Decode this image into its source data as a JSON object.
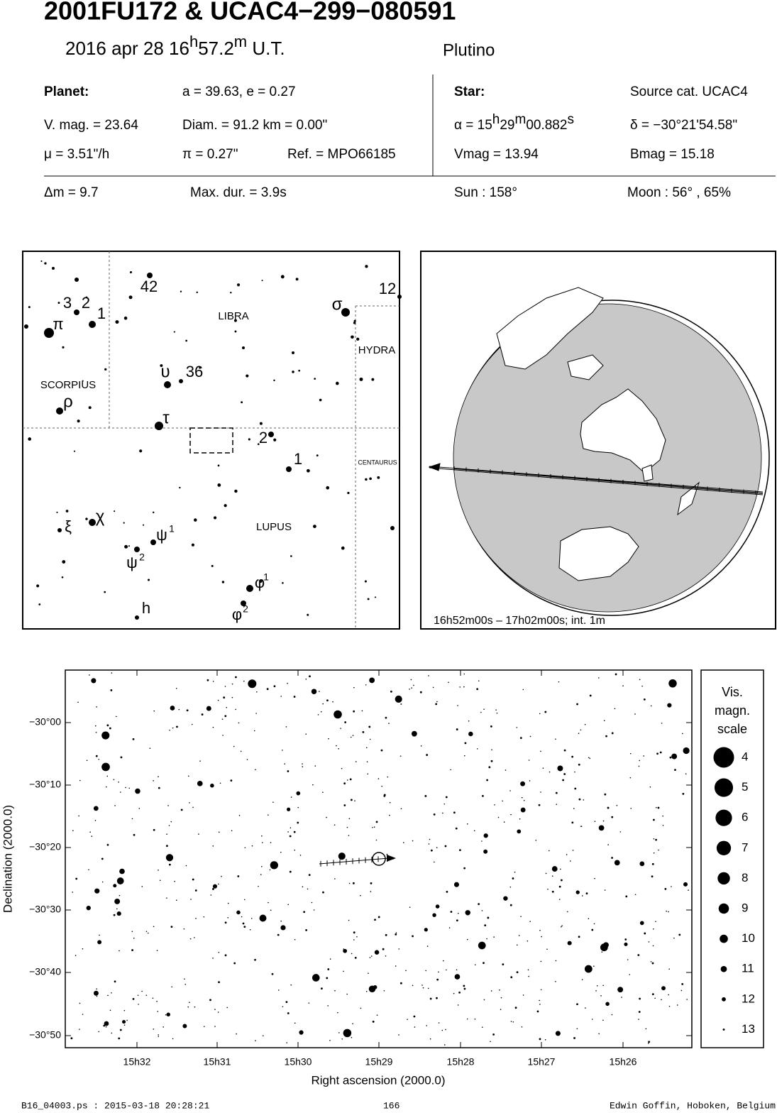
{
  "header": {
    "title": "2001FU172  &  UCAC4−299−080591",
    "date": "2016 apr 28  16",
    "date_h": "h",
    "date_min": "57.2",
    "date_m": "m",
    "date_ut": " U.T.",
    "class": "Plutino"
  },
  "info": {
    "planet_label": "Planet:",
    "orbit": "a = 39.63, e = 0.27",
    "star_label": "Star:",
    "source": "Source cat.  UCAC4",
    "vmag_planet": "V. mag. = 23.64",
    "diam": "Diam. = 91.2 km = 0.00\"",
    "ra": [
      "α = 15",
      "h",
      "29",
      "m",
      "00.882",
      "s"
    ],
    "dec": "δ = −30°21'54.58\"",
    "mu": "μ =  3.51\"/h",
    "parallax": "π =  0.27\"",
    "ref": "Ref. = MPO66185",
    "vmag_star": "Vmag = 13.94",
    "bmag": "Bmag = 15.18",
    "dm": "Δm = 9.7",
    "maxdur": "Max. dur. = 3.9s",
    "sun": "Sun : 158°",
    "moon": "Moon :  56° , 65%"
  },
  "finder": {
    "labels": [
      "42",
      "12",
      "3",
      "2",
      "1",
      "π",
      "σ",
      "LIBRA",
      "HYDRA",
      "SCORPIUS",
      "υ",
      "36",
      "ρ",
      "τ",
      "2",
      "1",
      "CENTAURUS",
      "ξ",
      "χ",
      "ψ",
      "1",
      "LUPUS",
      "ψ",
      "2",
      "φ",
      "1",
      "h",
      "φ",
      "2"
    ]
  },
  "globe": {
    "caption": "16h52m00s – 17h02m00s; int.  1m"
  },
  "star_chart": {
    "y_ticks": [
      "−30°00",
      "−30°10",
      "−30°20",
      "−30°30",
      "−30°40",
      "−30°50"
    ],
    "x_ticks": [
      "15h32",
      "15h31",
      "15h30",
      "15h29",
      "15h28",
      "15h27",
      "15h26"
    ],
    "y_label": "Declination (2000.0)",
    "x_label": "Right ascension (2000.0)",
    "legend": {
      "title": [
        "Vis.",
        "magn.",
        "scale"
      ],
      "magnitudes": [
        4,
        5,
        6,
        7,
        8,
        9,
        10,
        11,
        12,
        13
      ]
    }
  },
  "footer": {
    "file": "B16_04003.ps : 2015-03-18 20:28:21",
    "page": "166",
    "author": "Edwin Goffin, Hoboken, Belgium"
  }
}
